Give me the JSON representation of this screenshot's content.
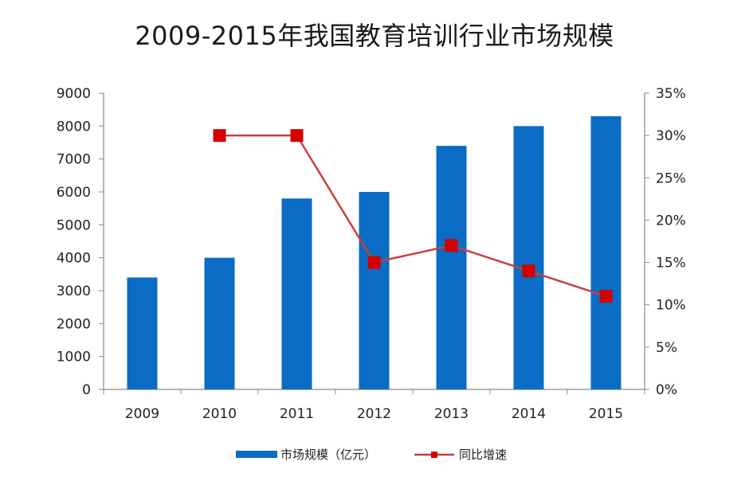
{
  "chart_data": {
    "type": "bar",
    "title": "2009-2015年我国教育培训行业市场规模",
    "categories": [
      "2009",
      "2010",
      "2011",
      "2012",
      "2013",
      "2014",
      "2015"
    ],
    "series": [
      {
        "name": "市场规模（亿元）",
        "type": "bar",
        "axis": "left",
        "values": [
          3400,
          4000,
          5800,
          6000,
          7400,
          8000,
          8300
        ]
      },
      {
        "name": "同比增速",
        "type": "line",
        "axis": "right",
        "values": [
          null,
          30,
          30,
          15,
          17,
          14,
          11
        ]
      }
    ],
    "y_left": {
      "min": 0,
      "max": 9000,
      "ticks": [
        "0",
        "1000",
        "2000",
        "3000",
        "4000",
        "5000",
        "6000",
        "7000",
        "8000",
        "9000"
      ]
    },
    "y_right": {
      "min": 0,
      "max": 35,
      "ticks": [
        "0%",
        "5%",
        "10%",
        "15%",
        "20%",
        "25%",
        "30%",
        "35%"
      ]
    },
    "grid": false,
    "legend_position": "bottom",
    "colors": {
      "bar": "#0a6cc4",
      "line": "#c8403c",
      "marker": "#d40000",
      "axis": "#8a8a8a"
    }
  }
}
